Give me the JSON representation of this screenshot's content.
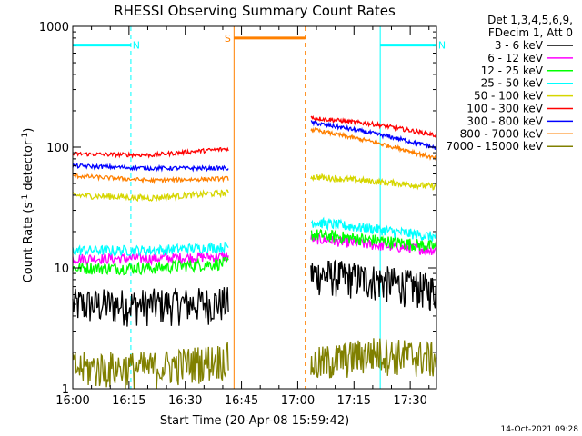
{
  "chart_data": {
    "type": "line",
    "title": "RHESSI Observing Summary Count Rates",
    "xlabel": "Start Time (20-Apr-08 15:59:42)",
    "ylabel": "Count Rate (s⁻¹ detector⁻¹)",
    "ylabel_main": "Count Rate (s",
    "ylabel_sup1": "-1",
    "ylabel_mid": " detector",
    "ylabel_sup2": "-1",
    "ylabel_end": ")",
    "x_unit": "minutes since 16:00",
    "xlim": [
      0,
      97
    ],
    "ylim": [
      1,
      1000
    ],
    "y_scale": "log",
    "x_ticks": [
      {
        "v": 0,
        "label": "16:00"
      },
      {
        "v": 15,
        "label": "16:15"
      },
      {
        "v": 30,
        "label": "16:30"
      },
      {
        "v": 45,
        "label": "16:45"
      },
      {
        "v": 60,
        "label": "17:00"
      },
      {
        "v": 75,
        "label": "17:15"
      },
      {
        "v": 90,
        "label": "17:30"
      }
    ],
    "y_ticks": [
      {
        "v": 1,
        "label": "1"
      },
      {
        "v": 10,
        "label": "10"
      },
      {
        "v": 100,
        "label": "100"
      },
      {
        "v": 1000,
        "label": "1000"
      }
    ],
    "legend_header": [
      "Det 1,3,4,5,6,9,",
      "FDecim 1, Att 0"
    ],
    "legend_position": "outside-right",
    "segments": [
      {
        "t0": 0,
        "t1": 41.5
      },
      {
        "t0": 63.5,
        "t1": 97
      }
    ],
    "series": [
      {
        "name": "3 - 6 keV",
        "color": "#000000",
        "pre": [
          5.0,
          5.0,
          5.2
        ],
        "post": [
          9.0,
          8.0,
          6.5
        ],
        "noise": 0.35
      },
      {
        "name": "6 - 12 keV",
        "color": "#ff00ff",
        "pre": [
          12,
          12,
          12.5
        ],
        "post": [
          17.5,
          15.5,
          14
        ],
        "noise": 0.1
      },
      {
        "name": "12 - 25 keV",
        "color": "#00ff00",
        "pre": [
          10,
          10,
          11
        ],
        "post": [
          19,
          17,
          15
        ],
        "noise": 0.12
      },
      {
        "name": "25 - 50 keV",
        "color": "#00ffff",
        "pre": [
          14,
          14,
          15
        ],
        "post": [
          24,
          21,
          18
        ],
        "noise": 0.1
      },
      {
        "name": "50 - 100 keV",
        "color": "#d6d600",
        "pre": [
          40,
          38,
          42
        ],
        "post": [
          57,
          52,
          47
        ],
        "noise": 0.06
      },
      {
        "name": "100 - 300 keV",
        "color": "#ff0000",
        "pre": [
          88,
          86,
          97
        ],
        "post": [
          175,
          155,
          125
        ],
        "noise": 0.04
      },
      {
        "name": "300 - 800 keV",
        "color": "#0000ff",
        "pre": [
          70,
          67,
          67
        ],
        "post": [
          160,
          130,
          98
        ],
        "noise": 0.04
      },
      {
        "name": "800 - 7000 keV",
        "color": "#ff8000",
        "pre": [
          58,
          53,
          55
        ],
        "post": [
          140,
          110,
          80
        ],
        "noise": 0.04
      },
      {
        "name": "7000 - 15000 keV",
        "color": "#808000",
        "pre": [
          1.5,
          1.5,
          1.8
        ],
        "post": [
          1.6,
          2.0,
          1.8
        ],
        "noise": 0.35
      }
    ],
    "annotations": [
      {
        "label": "N",
        "kind": "night",
        "t0": 0,
        "t1": 15.5,
        "color": "#00ffff",
        "level": 700
      },
      {
        "label": "N",
        "kind": "night",
        "t0": 82,
        "t1": 97,
        "color": "#00ffff",
        "level": 700
      },
      {
        "label": "S",
        "kind": "saa",
        "t0": 43,
        "t1": 62,
        "color": "#ff8000",
        "level": 800
      }
    ]
  },
  "footer": {
    "timestamp": "14-Oct-2021 09:28"
  }
}
